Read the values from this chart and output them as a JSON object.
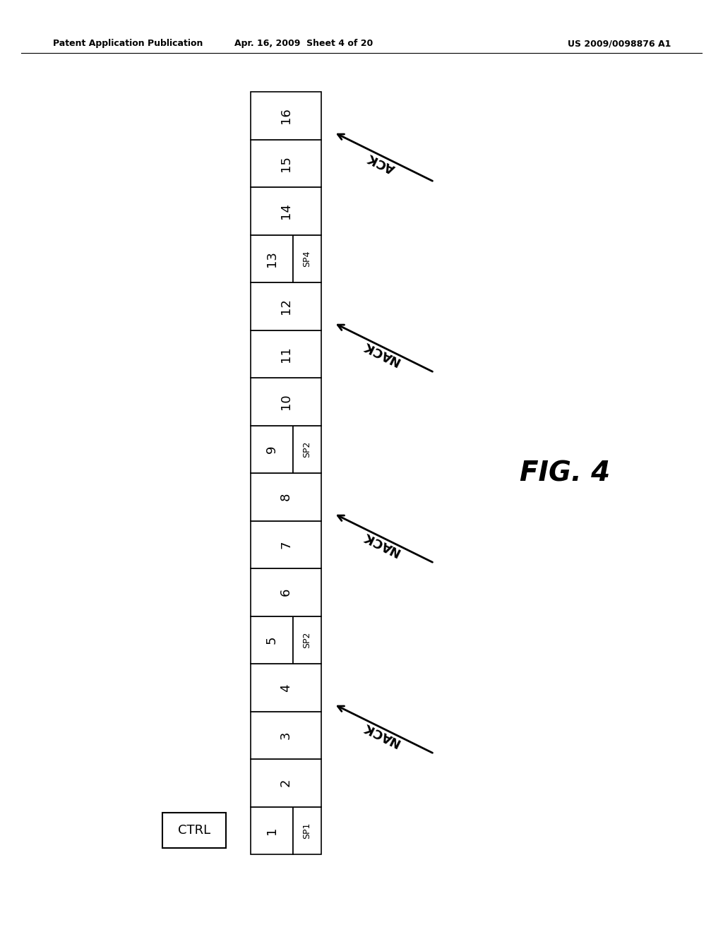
{
  "title_left": "Patent Application Publication",
  "title_center": "Apr. 16, 2009  Sheet 4 of 20",
  "title_right": "US 2009/0098876 A1",
  "fig_label": "FIG. 4",
  "cells": [
    {
      "num": 1,
      "label": "SP1"
    },
    {
      "num": 2,
      "label": ""
    },
    {
      "num": 3,
      "label": ""
    },
    {
      "num": 4,
      "label": ""
    },
    {
      "num": 5,
      "label": "SP2"
    },
    {
      "num": 6,
      "label": ""
    },
    {
      "num": 7,
      "label": ""
    },
    {
      "num": 8,
      "label": ""
    },
    {
      "num": 9,
      "label": "SP2"
    },
    {
      "num": 10,
      "label": ""
    },
    {
      "num": 11,
      "label": ""
    },
    {
      "num": 12,
      "label": ""
    },
    {
      "num": 13,
      "label": "SP4"
    },
    {
      "num": 14,
      "label": ""
    },
    {
      "num": 15,
      "label": ""
    },
    {
      "num": 16,
      "label": ""
    }
  ],
  "arrows": [
    {
      "after_cell": 3,
      "text": "NACK",
      "type": "NACK"
    },
    {
      "after_cell": 7,
      "text": "NACK",
      "type": "NACK"
    },
    {
      "after_cell": 11,
      "text": "NACK",
      "type": "NACK"
    },
    {
      "after_cell": 15,
      "text": "ACK",
      "type": "ACK"
    }
  ],
  "ctrl_label": "CTRL",
  "background": "#ffffff",
  "line_color": "#000000",
  "text_color": "#000000"
}
